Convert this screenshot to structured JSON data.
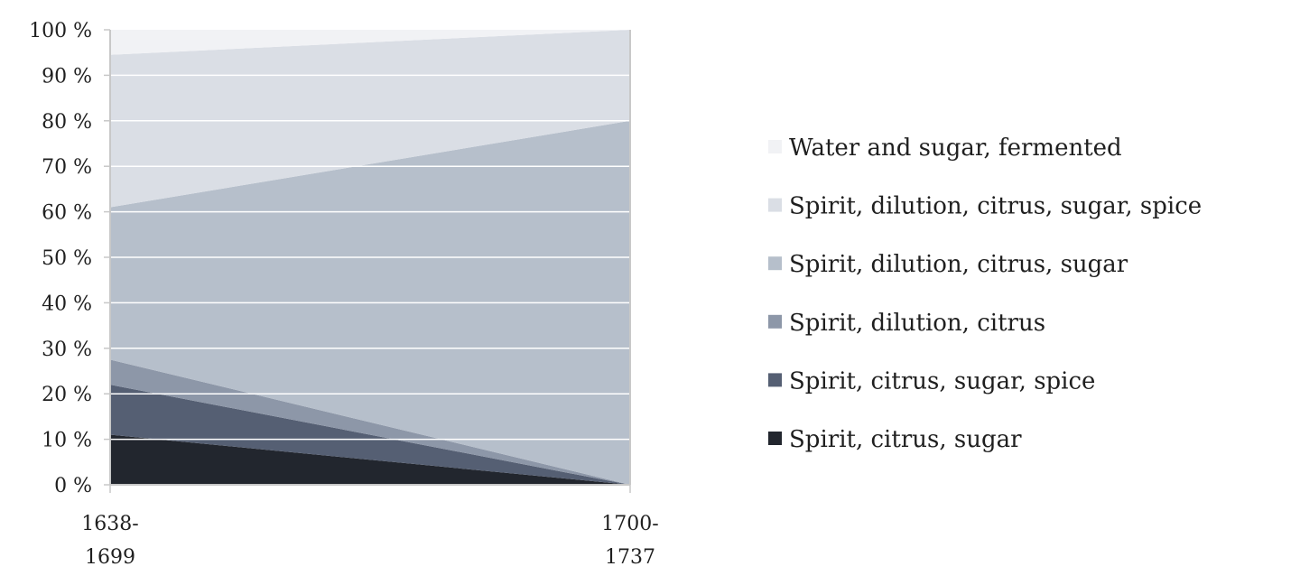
{
  "chart_data": {
    "type": "area",
    "stacking": "percent",
    "categories": [
      [
        "1638-",
        "1699"
      ],
      [
        "1700-",
        "1737"
      ]
    ],
    "y_ticks": [
      "0 %",
      "10 %",
      "20 %",
      "30 %",
      "40 %",
      "50 %",
      "60 %",
      "70 %",
      "80 %",
      "90 %",
      "100 %"
    ],
    "ylim": [
      0,
      100
    ],
    "grid": true,
    "legend_position": "right",
    "series": [
      {
        "name": "Spirit, citrus, sugar",
        "values": [
          11,
          0
        ],
        "color": "#22262e"
      },
      {
        "name": "Spirit, citrus, sugar, spice",
        "values": [
          11,
          0
        ],
        "color": "#555f73"
      },
      {
        "name": "Spirit, dilution, citrus",
        "values": [
          5.5,
          0
        ],
        "color": "#8d97a8"
      },
      {
        "name": "Spirit, dilution, citrus, sugar",
        "values": [
          33.5,
          80
        ],
        "color": "#b6bfcb"
      },
      {
        "name": "Spirit, dilution, citrus, sugar, spice",
        "values": [
          33.5,
          20
        ],
        "color": "#dadee5"
      },
      {
        "name": "Water and sugar, fermented",
        "values": [
          5.5,
          0
        ],
        "color": "#f1f2f5"
      }
    ]
  }
}
